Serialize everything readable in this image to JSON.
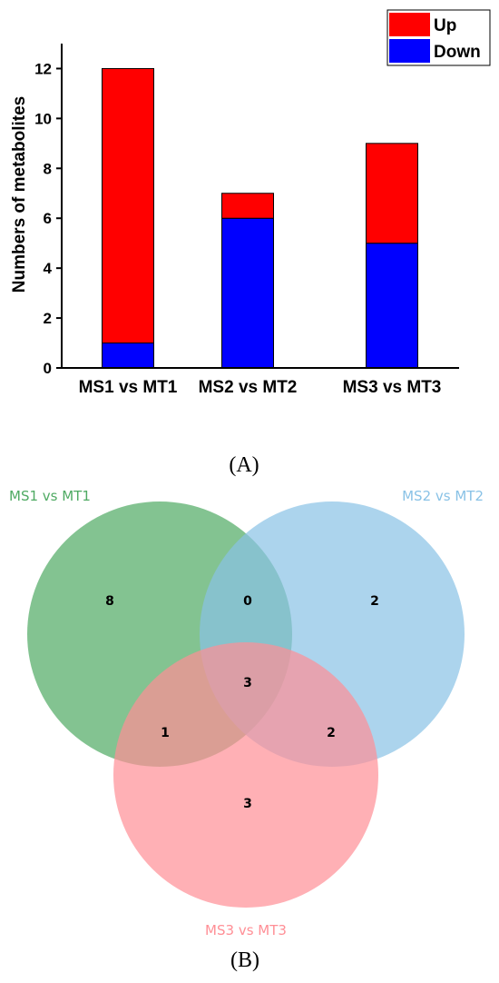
{
  "chart_data": [
    {
      "type": "bar",
      "stacked": true,
      "categories": [
        "MS1 vs MT1",
        "MS2 vs MT2",
        "MS3 vs MT3"
      ],
      "series": [
        {
          "name": "Down",
          "values": [
            1,
            6,
            5
          ],
          "color": "#0000ff"
        },
        {
          "name": "Up",
          "values": [
            11,
            1,
            4
          ],
          "color": "#ff0000"
        }
      ],
      "ylabel": "Numbers of metabolites",
      "ylim": [
        0,
        13
      ],
      "yticks": [
        0,
        2,
        4,
        6,
        8,
        10,
        12
      ],
      "legend": {
        "position": "top-right",
        "entries": [
          "Up",
          "Down"
        ]
      },
      "grid": false
    },
    {
      "type": "venn",
      "sets": [
        {
          "name": "MS1 vs MT1",
          "color": "#4faa63"
        },
        {
          "name": "MS2 vs MT2",
          "color": "#89c2e6"
        },
        {
          "name": "MS3 vs MT3",
          "color": "#ff8f96"
        }
      ],
      "regions": {
        "only_1": 8,
        "only_2": 2,
        "only_3": 3,
        "1_and_2": 0,
        "1_and_3": 1,
        "2_and_3": 2,
        "all": 3
      }
    }
  ],
  "panel_labels": {
    "a": "(A)",
    "b": "(B)"
  }
}
